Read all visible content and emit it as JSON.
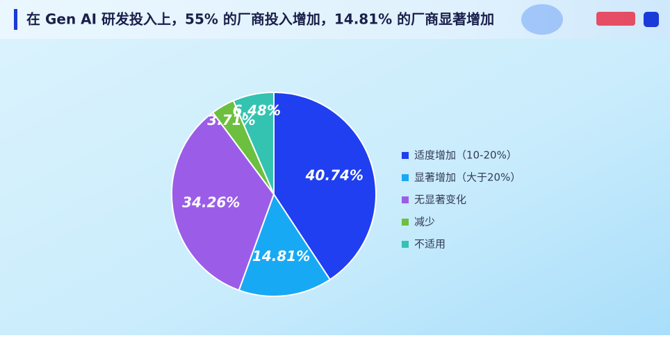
{
  "chart_data": {
    "type": "pie",
    "title": "在 Gen AI 研发投入上，55% 的厂商投入增加，14.81% 的厂商显著增加",
    "categories": [
      "适度增加（10-20%）",
      "显著增加（大于20%）",
      "无显著变化",
      "减少",
      "不适用"
    ],
    "values": [
      40.74,
      14.81,
      34.26,
      3.71,
      6.48
    ],
    "value_labels": [
      "40.74%",
      "14.81%",
      "34.26%",
      "3.71%",
      "6.48%"
    ],
    "colors": [
      "#1f3ff0",
      "#18a9f5",
      "#9b5de8",
      "#6cbf3f",
      "#34c3b0"
    ],
    "legend": "right"
  }
}
